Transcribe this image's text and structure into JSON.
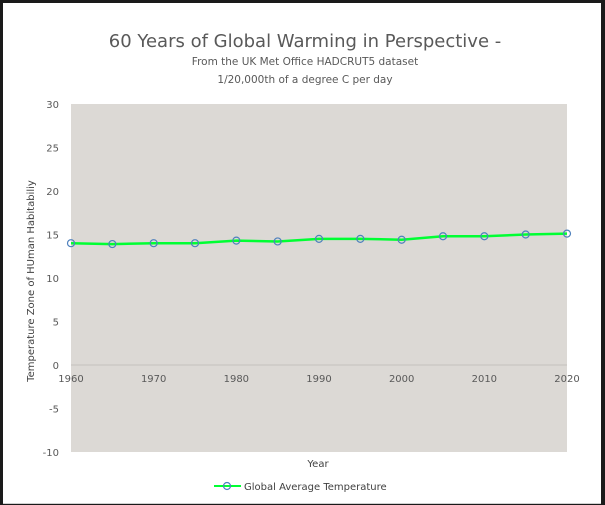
{
  "chart_data": {
    "type": "line",
    "title": "60 Years of Global Warming in Perspective -",
    "subtitle_lines": [
      "From the  UK Met  Office HADCRUT5  dataset",
      "1/20,000th of a degree  C per day"
    ],
    "xlabel": "Year",
    "ylabel": "Temperature Zone of HUman Habitabiliy",
    "xlim": [
      1960,
      2020
    ],
    "ylim": [
      -10,
      30
    ],
    "x_ticks": [
      1960,
      1970,
      1980,
      1990,
      2000,
      2010,
      2020
    ],
    "y_ticks": [
      -10,
      -5,
      0,
      5,
      10,
      15,
      20,
      25,
      30
    ],
    "grid": false,
    "legend_position": "bottom",
    "series": [
      {
        "name": "Global Average Temperature",
        "color": "#00ff33",
        "marker_color": "#4f81bd",
        "x": [
          1960,
          1965,
          1970,
          1975,
          1980,
          1985,
          1990,
          1995,
          2000,
          2005,
          2010,
          2015,
          2020
        ],
        "values": [
          14.0,
          13.9,
          14.0,
          14.0,
          14.3,
          14.2,
          14.5,
          14.5,
          14.4,
          14.8,
          14.8,
          15.0,
          15.1
        ]
      }
    ],
    "plot_background": "#dcd9d5"
  }
}
